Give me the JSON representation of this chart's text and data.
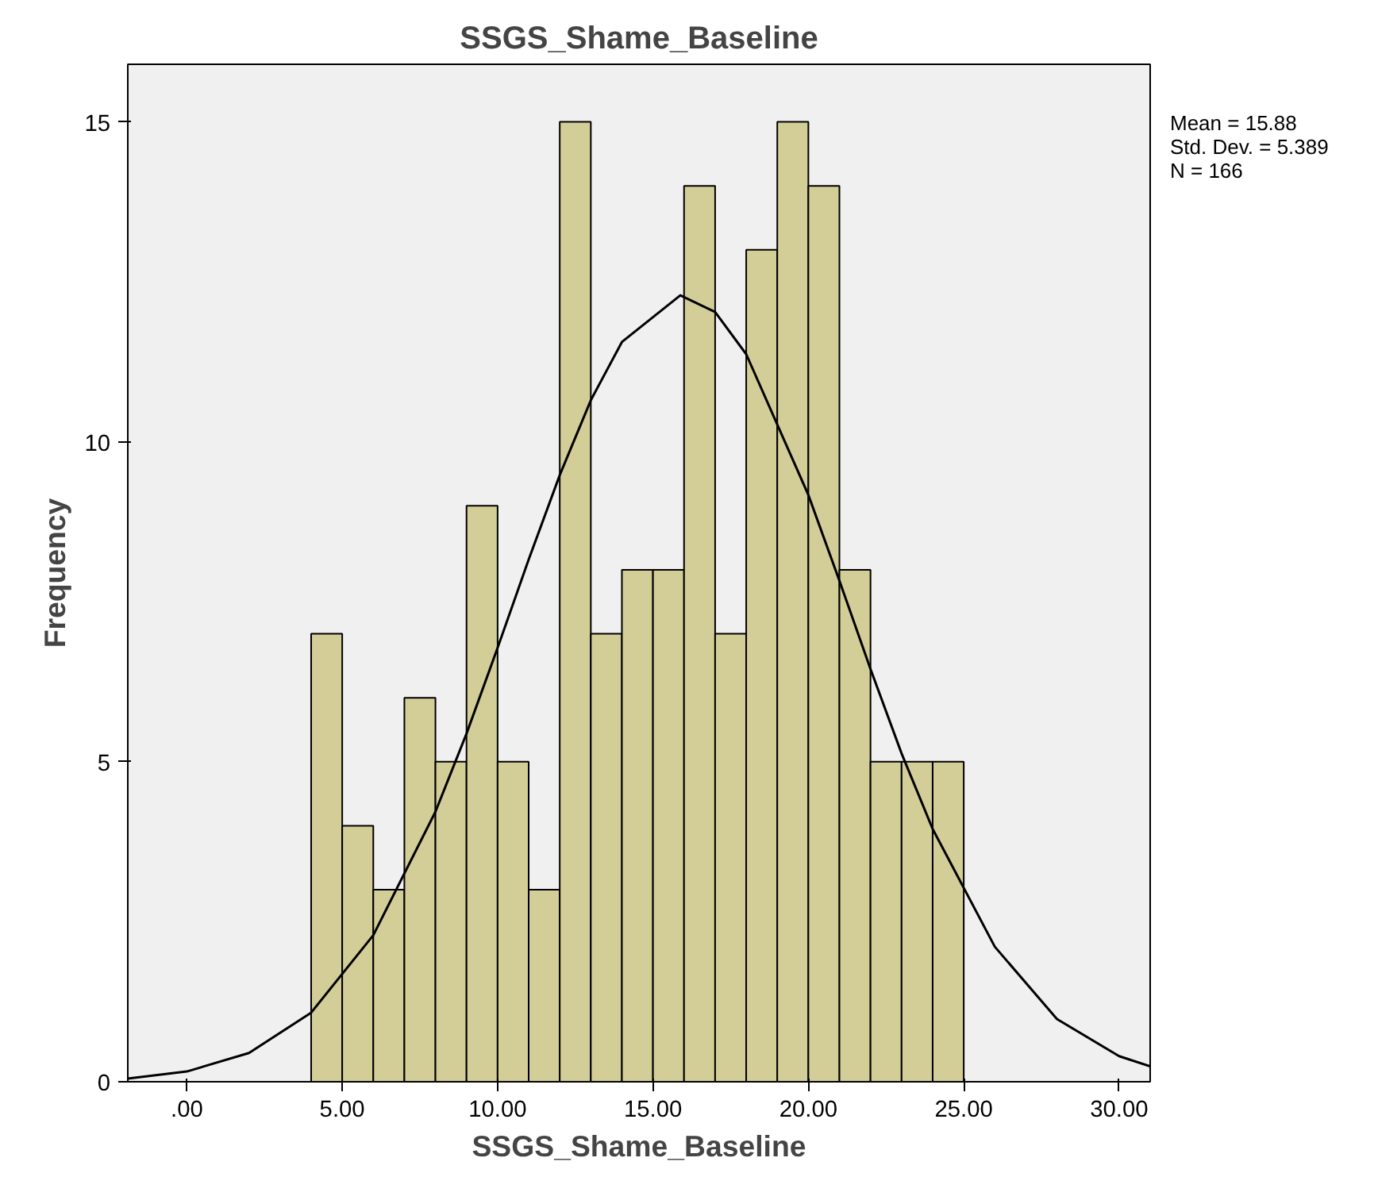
{
  "chart_data": {
    "type": "histogram",
    "title": "SSGS_Shame_Baseline",
    "xlabel": "SSGS_Shame_Baseline",
    "ylabel": "Frequency",
    "bins": [
      4,
      5,
      6,
      7,
      8,
      9,
      10,
      11,
      12,
      13,
      14,
      15,
      16,
      17,
      18,
      19,
      20,
      21,
      22,
      23,
      24,
      25
    ],
    "values": [
      7,
      4,
      3,
      6,
      5,
      9,
      5,
      3,
      15,
      7,
      8,
      8,
      14,
      7,
      13,
      15,
      14,
      8,
      5,
      5,
      5
    ],
    "color": "#d3ce97",
    "series": [
      {
        "type": "line",
        "color": "#000000",
        "x": [
          -1.9,
          0,
          2,
          4,
          6,
          8,
          9,
          10,
          11,
          12,
          13,
          14,
          15.88,
          17,
          18,
          20,
          21,
          22,
          23,
          24,
          26,
          28,
          30,
          31
        ],
        "values": [
          0.05,
          0.16,
          0.45,
          1.08,
          2.29,
          4.22,
          5.44,
          6.78,
          8.16,
          9.48,
          10.65,
          11.56,
          12.29,
          12.03,
          11.37,
          9.17,
          7.83,
          6.45,
          5.13,
          3.95,
          2.11,
          0.98,
          0.4,
          0.24
        ]
      }
    ],
    "xlim": [
      -1.9,
      31
    ],
    "ylim": [
      0,
      15.9
    ],
    "xticks": [
      {
        "value": 0,
        "label": ".00"
      },
      {
        "value": 5,
        "label": "5.00"
      },
      {
        "value": 10,
        "label": "10.00"
      },
      {
        "value": 15,
        "label": "15.00"
      },
      {
        "value": 20,
        "label": "20.00"
      },
      {
        "value": 25,
        "label": "25.00"
      },
      {
        "value": 30,
        "label": "30.00"
      }
    ],
    "yticks": [
      0,
      5,
      10,
      15
    ],
    "grid": false,
    "annotations": [
      "Mean = 15.88",
      "Std. Dev. = 5.389",
      "N = 166"
    ]
  }
}
